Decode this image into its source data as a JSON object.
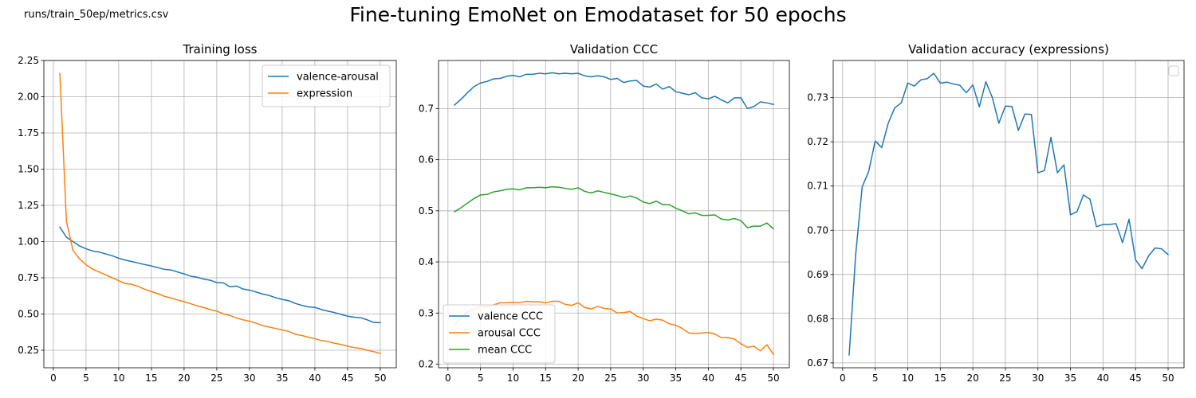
{
  "figure": {
    "suptitle": "Fine-tuning EmoNet on Emodataset for 50 epochs",
    "source_path": "runs/train_50ep/metrics.csv"
  },
  "chart_data": [
    {
      "type": "line",
      "title": "Training loss",
      "xlabel": "",
      "ylabel": "",
      "xlim": [
        -1.45,
        52.45
      ],
      "ylim": [
        0.129,
        2.25
      ],
      "xticks": [
        0,
        5,
        10,
        15,
        20,
        25,
        30,
        35,
        40,
        45,
        50
      ],
      "yticks": [
        0.25,
        0.5,
        0.75,
        1.0,
        1.25,
        1.5,
        1.75,
        2.0,
        2.25
      ],
      "ytick_labels": [
        "0.25",
        "0.50",
        "0.75",
        "1.00",
        "1.25",
        "1.50",
        "1.75",
        "2.00",
        "2.25"
      ],
      "grid": true,
      "legend": "upper right",
      "x": [
        1,
        2,
        3,
        4,
        5,
        6,
        7,
        8,
        9,
        10,
        11,
        12,
        13,
        14,
        15,
        16,
        17,
        18,
        19,
        20,
        21,
        22,
        23,
        24,
        25,
        26,
        27,
        28,
        29,
        30,
        31,
        32,
        33,
        34,
        35,
        36,
        37,
        38,
        39,
        40,
        41,
        42,
        43,
        44,
        45,
        46,
        47,
        48,
        49,
        50
      ],
      "series": [
        {
          "name": "valence-arousal",
          "color": "#1f77b4",
          "values": [
            1.1,
            1.03,
            1.0,
            0.97,
            0.95,
            0.935,
            0.928,
            0.915,
            0.902,
            0.885,
            0.872,
            0.862,
            0.852,
            0.841,
            0.832,
            0.82,
            0.808,
            0.804,
            0.79,
            0.777,
            0.761,
            0.754,
            0.741,
            0.733,
            0.717,
            0.715,
            0.688,
            0.693,
            0.673,
            0.665,
            0.652,
            0.638,
            0.628,
            0.613,
            0.601,
            0.592,
            0.573,
            0.56,
            0.549,
            0.546,
            0.531,
            0.52,
            0.51,
            0.497,
            0.485,
            0.478,
            0.474,
            0.46,
            0.442,
            0.44
          ]
        },
        {
          "name": "expression",
          "color": "#ff7f0e",
          "values": [
            2.16,
            1.14,
            0.94,
            0.88,
            0.84,
            0.81,
            0.79,
            0.77,
            0.75,
            0.73,
            0.71,
            0.705,
            0.69,
            0.67,
            0.655,
            0.64,
            0.622,
            0.61,
            0.597,
            0.585,
            0.571,
            0.556,
            0.545,
            0.53,
            0.52,
            0.5,
            0.49,
            0.473,
            0.46,
            0.45,
            0.437,
            0.42,
            0.41,
            0.4,
            0.39,
            0.38,
            0.36,
            0.352,
            0.34,
            0.33,
            0.317,
            0.31,
            0.298,
            0.29,
            0.278,
            0.268,
            0.263,
            0.25,
            0.24,
            0.228
          ]
        }
      ]
    },
    {
      "type": "line",
      "title": "Validation CCC",
      "xlabel": "",
      "ylabel": "",
      "xlim": [
        -1.45,
        52.45
      ],
      "ylim": [
        0.193,
        0.794
      ],
      "xticks": [
        0,
        5,
        10,
        15,
        20,
        25,
        30,
        35,
        40,
        45,
        50
      ],
      "yticks": [
        0.2,
        0.3,
        0.4,
        0.5,
        0.6,
        0.7
      ],
      "ytick_labels": [
        "0.2",
        "0.3",
        "0.4",
        "0.5",
        "0.6",
        "0.7"
      ],
      "grid": true,
      "legend": "lower left",
      "x": [
        1,
        2,
        3,
        4,
        5,
        6,
        7,
        8,
        9,
        10,
        11,
        12,
        13,
        14,
        15,
        16,
        17,
        18,
        19,
        20,
        21,
        22,
        23,
        24,
        25,
        26,
        27,
        28,
        29,
        30,
        31,
        32,
        33,
        34,
        35,
        36,
        37,
        38,
        39,
        40,
        41,
        42,
        43,
        44,
        45,
        46,
        47,
        48,
        49,
        50
      ],
      "series": [
        {
          "name": "valence CCC",
          "color": "#1f77b4",
          "values": [
            0.707,
            0.718,
            0.731,
            0.743,
            0.75,
            0.753,
            0.758,
            0.759,
            0.763,
            0.765,
            0.762,
            0.767,
            0.767,
            0.769,
            0.768,
            0.77,
            0.768,
            0.769,
            0.768,
            0.769,
            0.764,
            0.762,
            0.764,
            0.762,
            0.757,
            0.759,
            0.751,
            0.754,
            0.755,
            0.744,
            0.742,
            0.748,
            0.738,
            0.743,
            0.733,
            0.73,
            0.727,
            0.731,
            0.721,
            0.719,
            0.724,
            0.717,
            0.711,
            0.721,
            0.721,
            0.7,
            0.704,
            0.713,
            0.711,
            0.708
          ]
        },
        {
          "name": "arousal CCC",
          "color": "#ff7f0e",
          "values": [
            0.277,
            0.291,
            0.302,
            0.307,
            0.313,
            0.312,
            0.316,
            0.32,
            0.32,
            0.321,
            0.32,
            0.323,
            0.322,
            0.322,
            0.32,
            0.323,
            0.323,
            0.317,
            0.315,
            0.32,
            0.311,
            0.308,
            0.313,
            0.309,
            0.308,
            0.3,
            0.301,
            0.303,
            0.294,
            0.289,
            0.285,
            0.288,
            0.286,
            0.279,
            0.276,
            0.27,
            0.261,
            0.26,
            0.261,
            0.262,
            0.259,
            0.252,
            0.252,
            0.249,
            0.24,
            0.233,
            0.235,
            0.226,
            0.238,
            0.219
          ]
        },
        {
          "name": "mean CCC",
          "color": "#2ca02c",
          "values": [
            0.498,
            0.506,
            0.515,
            0.524,
            0.531,
            0.532,
            0.537,
            0.539,
            0.542,
            0.543,
            0.541,
            0.545,
            0.545,
            0.546,
            0.545,
            0.547,
            0.546,
            0.544,
            0.542,
            0.545,
            0.538,
            0.535,
            0.539,
            0.536,
            0.533,
            0.53,
            0.526,
            0.529,
            0.525,
            0.517,
            0.514,
            0.519,
            0.512,
            0.512,
            0.505,
            0.5,
            0.494,
            0.496,
            0.491,
            0.491,
            0.492,
            0.484,
            0.482,
            0.485,
            0.481,
            0.467,
            0.47,
            0.47,
            0.476,
            0.465
          ]
        }
      ]
    },
    {
      "type": "line",
      "title": "Validation accuracy (expressions)",
      "xlabel": "",
      "ylabel": "",
      "xlim": [
        -1.45,
        52.45
      ],
      "ylim": [
        0.6689,
        0.7384
      ],
      "xticks": [
        0,
        5,
        10,
        15,
        20,
        25,
        30,
        35,
        40,
        45,
        50
      ],
      "yticks": [
        0.67,
        0.68,
        0.69,
        0.7,
        0.71,
        0.72,
        0.73
      ],
      "ytick_labels": [
        "0.67",
        "0.68",
        "0.69",
        "0.70",
        "0.71",
        "0.72",
        "0.73"
      ],
      "grid": true,
      "legend": "upper right (empty)",
      "x": [
        1,
        2,
        3,
        4,
        5,
        6,
        7,
        8,
        9,
        10,
        11,
        12,
        13,
        14,
        15,
        16,
        17,
        18,
        19,
        20,
        21,
        22,
        23,
        24,
        25,
        26,
        27,
        28,
        29,
        30,
        31,
        32,
        33,
        34,
        35,
        36,
        37,
        38,
        39,
        40,
        41,
        42,
        43,
        44,
        45,
        46,
        47,
        48,
        49,
        50
      ],
      "series": [
        {
          "color": "#1f77b4",
          "values": [
            0.6718,
            0.6945,
            0.7098,
            0.7133,
            0.7202,
            0.7187,
            0.7242,
            0.7277,
            0.7288,
            0.7333,
            0.7326,
            0.734,
            0.7343,
            0.7355,
            0.7333,
            0.7335,
            0.7331,
            0.7328,
            0.7311,
            0.7329,
            0.7279,
            0.7336,
            0.73,
            0.7242,
            0.7281,
            0.728,
            0.7226,
            0.7263,
            0.7262,
            0.713,
            0.7135,
            0.721,
            0.713,
            0.7148,
            0.7035,
            0.7042,
            0.708,
            0.707,
            0.7008,
            0.7013,
            0.7013,
            0.7015,
            0.6972,
            0.7025,
            0.6933,
            0.6913,
            0.6942,
            0.696,
            0.6958,
            0.6945
          ]
        }
      ]
    }
  ]
}
